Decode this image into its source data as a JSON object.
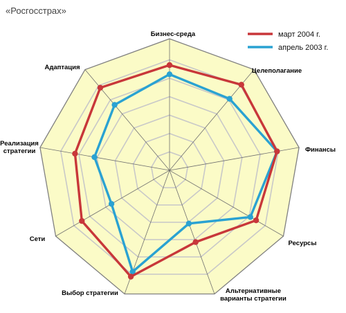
{
  "header": {
    "title": "«Росгосстрах»"
  },
  "chart_data": {
    "type": "radar",
    "categories": [
      "Бизнес-среда",
      "Целеполагание",
      "Финансы",
      "Ресурсы",
      "Альтернативные варианты стратегии",
      "Выбор стратегии",
      "Сети",
      "Реализация стратегии",
      "Адаптация"
    ],
    "rmax": 10,
    "rings": 6,
    "grid": true,
    "legend_position": "top-right",
    "series": [
      {
        "name": "март 2004 г.",
        "color": "#c8373a",
        "values": [
          8.0,
          8.5,
          8.3,
          7.6,
          5.8,
          8.6,
          7.7,
          7.3,
          8.2
        ]
      },
      {
        "name": "апрель 2003 г.",
        "color": "#2aa2d2",
        "values": [
          7.3,
          7.1,
          8.3,
          7.1,
          4.3,
          8.2,
          5.1,
          5.8,
          6.5
        ]
      }
    ],
    "colors": {
      "outer_fill": "#fbfbc7",
      "frame_stroke": "#808080",
      "grid_stroke": "#c8c8c8",
      "spoke_stroke": "#707070"
    }
  }
}
